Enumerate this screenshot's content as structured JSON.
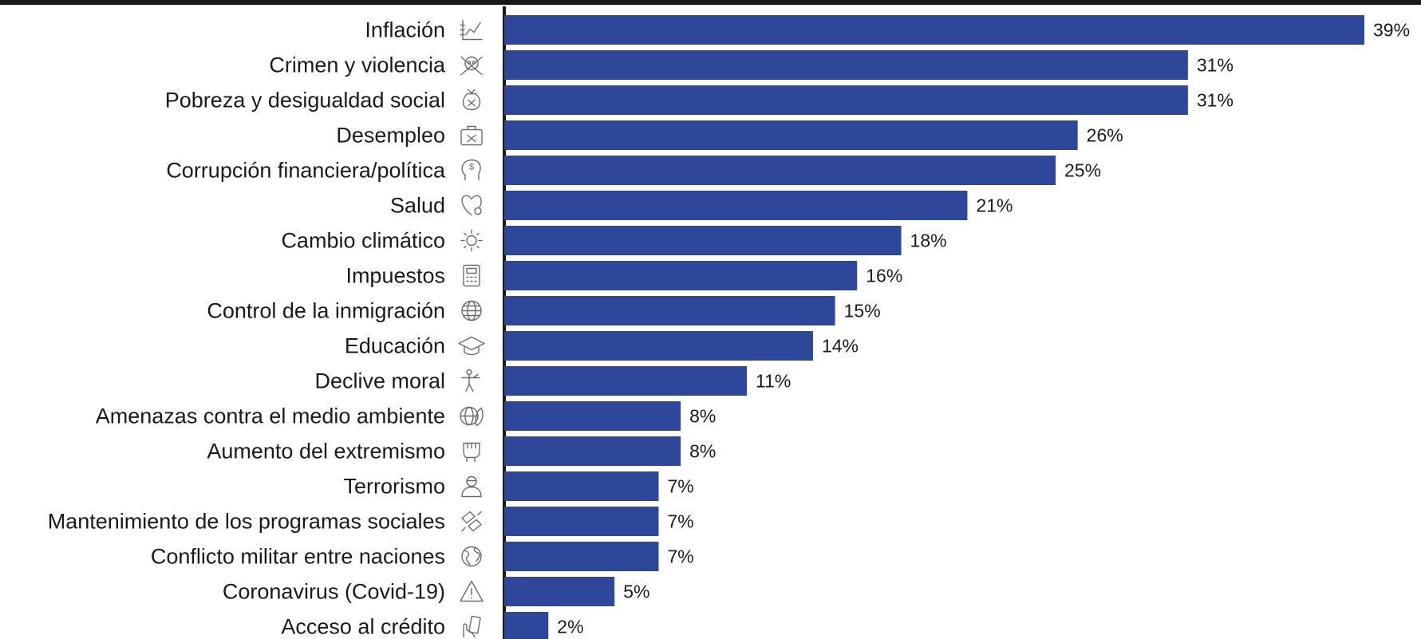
{
  "chart_data": {
    "type": "bar",
    "orientation": "horizontal",
    "categories": [
      "Inflación",
      "Crimen y violencia",
      "Pobreza y desigualdad social",
      "Desempleo",
      "Corrupción financiera/política",
      "Salud",
      "Cambio climático",
      "Impuestos",
      "Control de la inmigración",
      "Educación",
      "Declive moral",
      "Amenazas contra el medio ambiente",
      "Aumento del extremismo",
      "Terrorismo",
      "Mantenimiento de los programas sociales",
      "Conflicto militar entre naciones",
      "Coronavirus (Covid-19)",
      "Acceso al crédito"
    ],
    "values": [
      39,
      31,
      31,
      26,
      25,
      21,
      18,
      16,
      15,
      14,
      11,
      8,
      8,
      7,
      7,
      7,
      5,
      2
    ],
    "value_labels": [
      "39%",
      "31%",
      "31%",
      "26%",
      "25%",
      "21%",
      "18%",
      "16%",
      "15%",
      "14%",
      "11%",
      "8%",
      "8%",
      "7%",
      "7%",
      "7%",
      "5%",
      "2%"
    ],
    "icons": [
      "line-chart-icon",
      "skull-crossbones-icon",
      "money-bag-icon",
      "briefcase-icon",
      "head-dollar-icon",
      "heart-stethoscope-icon",
      "sun-icon",
      "calculator-icon",
      "globe-icon",
      "graduation-cap-icon",
      "broken-figure-icon",
      "globe-leaf-icon",
      "raised-fist-icon",
      "masked-person-icon",
      "helping-hands-icon",
      "earth-icon",
      "warning-triangle-icon",
      "hand-card-icon"
    ],
    "xlim": [
      0,
      39
    ],
    "grid": false,
    "legend": "none",
    "bar_color": "#2f479b",
    "axis_color": "#1a1a1a"
  }
}
